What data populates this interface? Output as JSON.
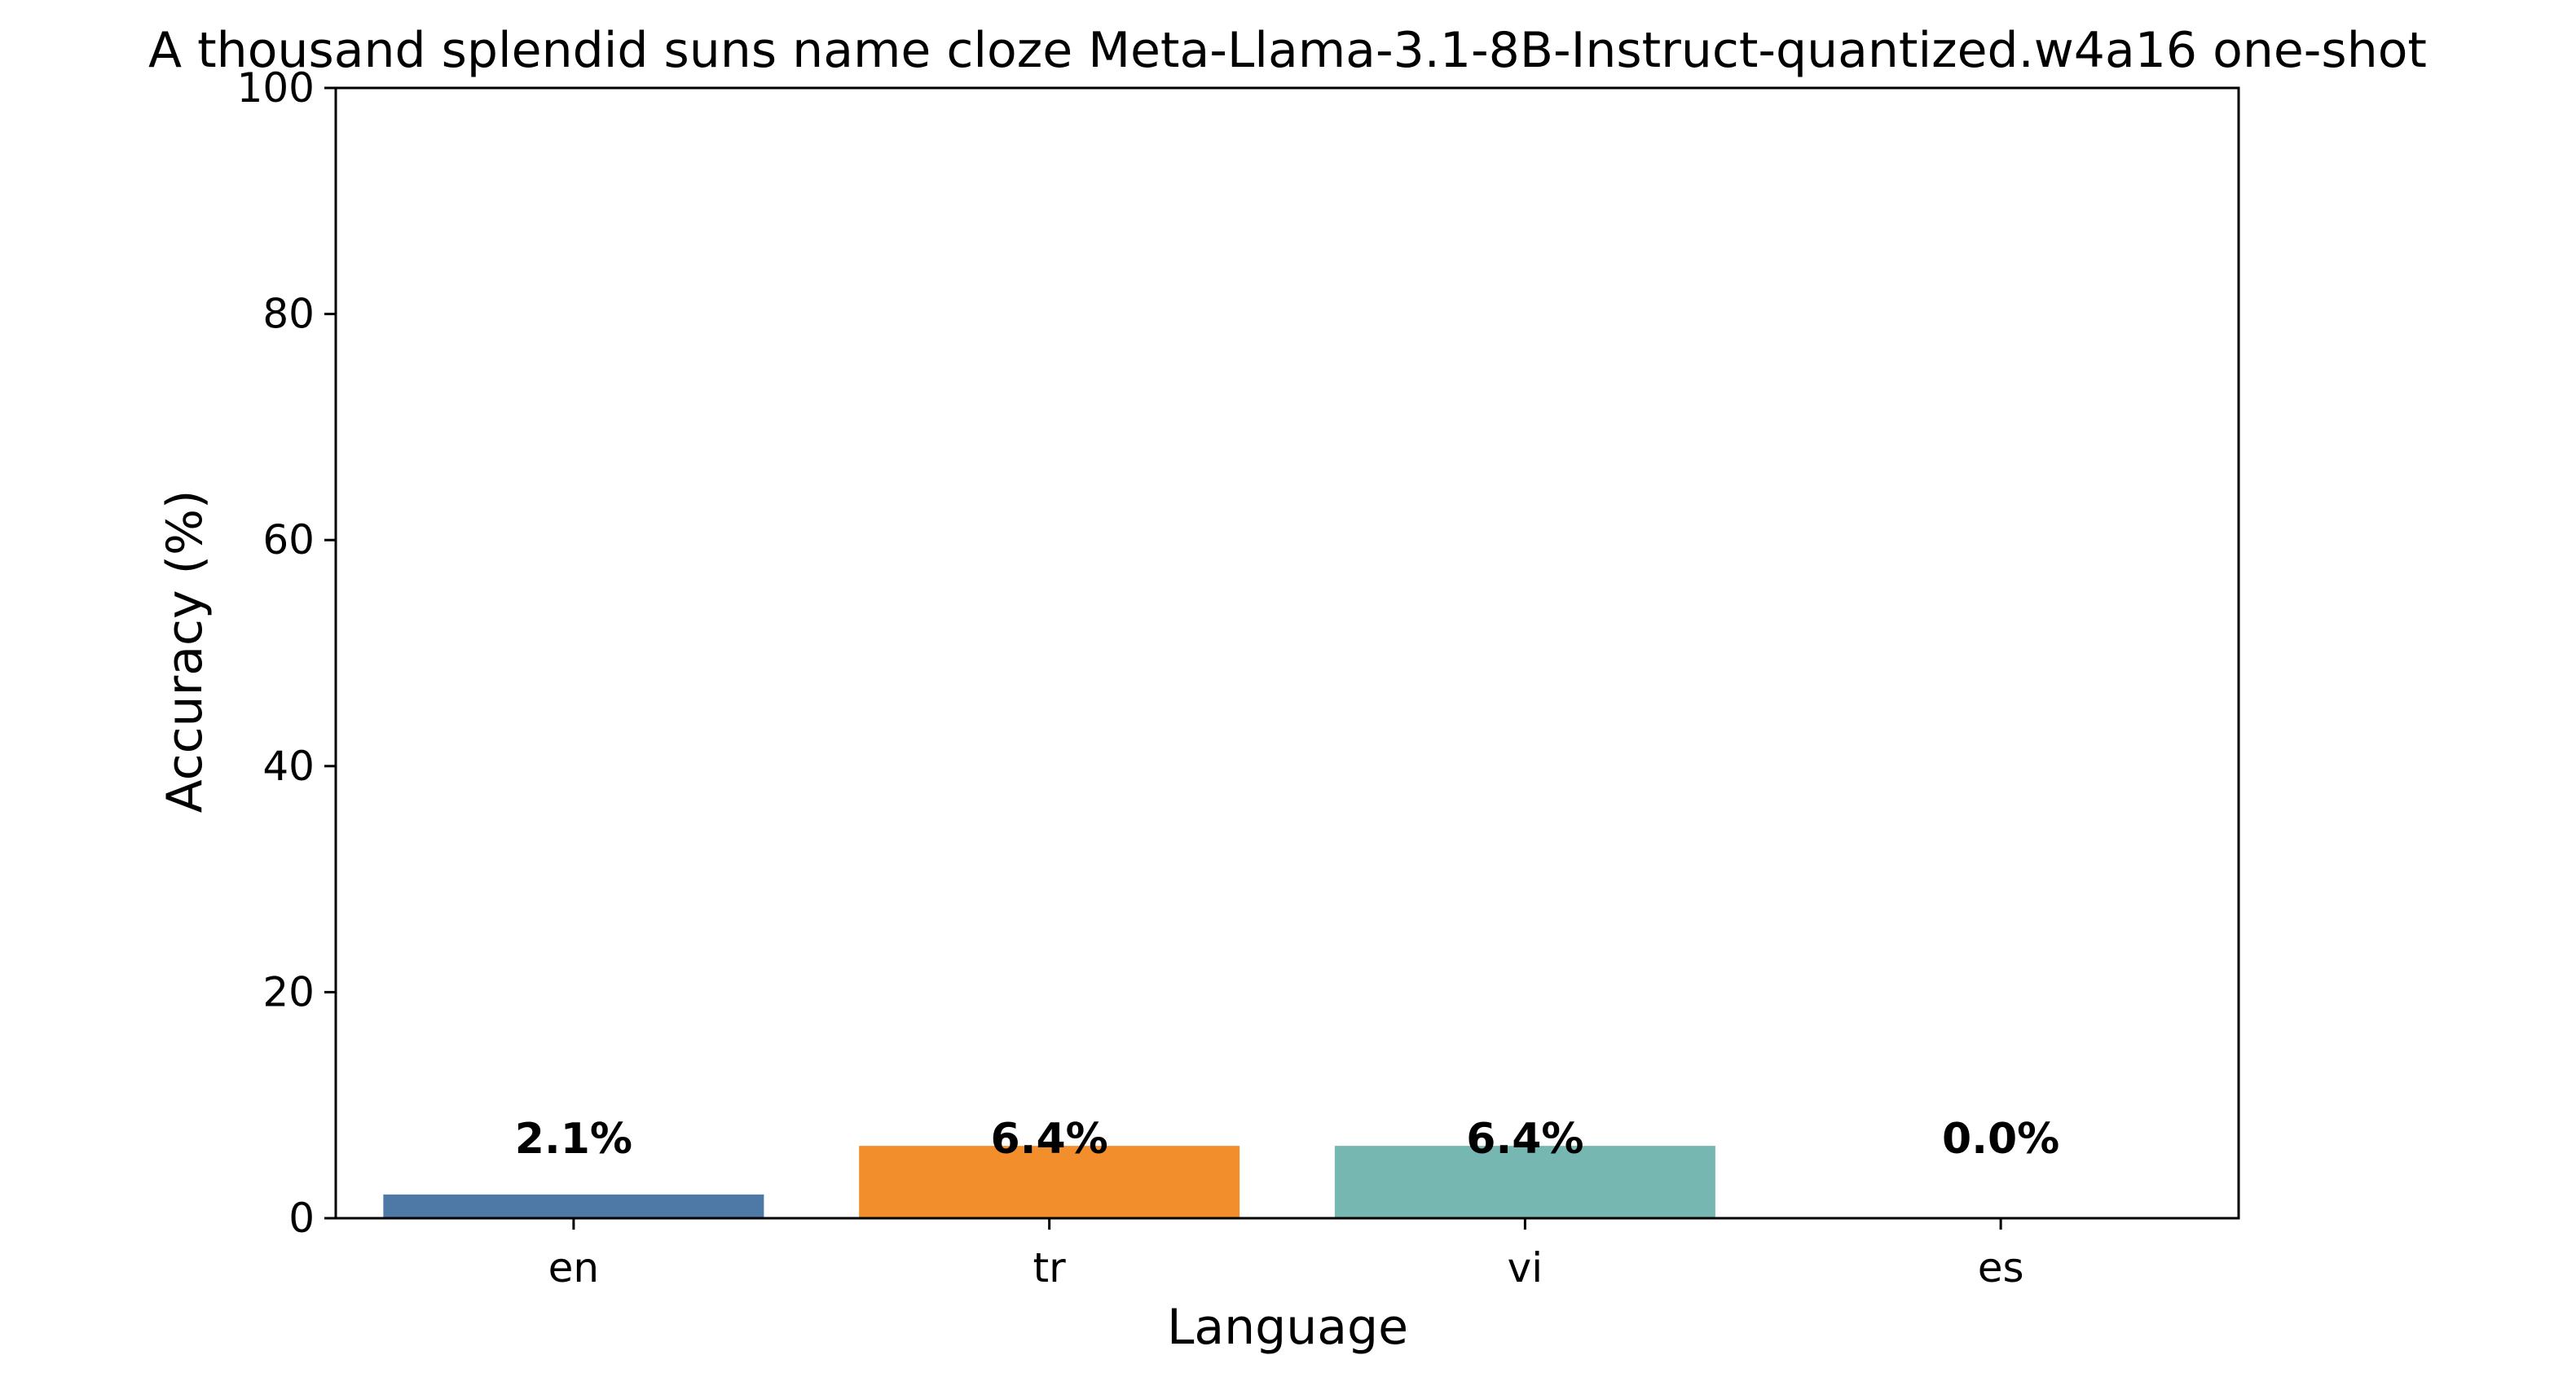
{
  "chart_data": {
    "type": "bar",
    "title": "A thousand splendid suns name cloze Meta-Llama-3.1-8B-Instruct-quantized.w4a16 one-shot",
    "xlabel": "Language",
    "ylabel": "Accuracy (%)",
    "categories": [
      "en",
      "tr",
      "vi",
      "es"
    ],
    "values": [
      2.1,
      6.4,
      6.4,
      0.0
    ],
    "data_labels": [
      "2.1%",
      "6.4%",
      "6.4%",
      "0.0%"
    ],
    "colors": [
      "#4e79a7",
      "#f28e2b",
      "#76b7b2",
      "#e15759"
    ],
    "ylim": [
      0,
      100
    ],
    "yticks": [
      0,
      20,
      40,
      60,
      80,
      100
    ],
    "grid": false,
    "legend": "none"
  }
}
